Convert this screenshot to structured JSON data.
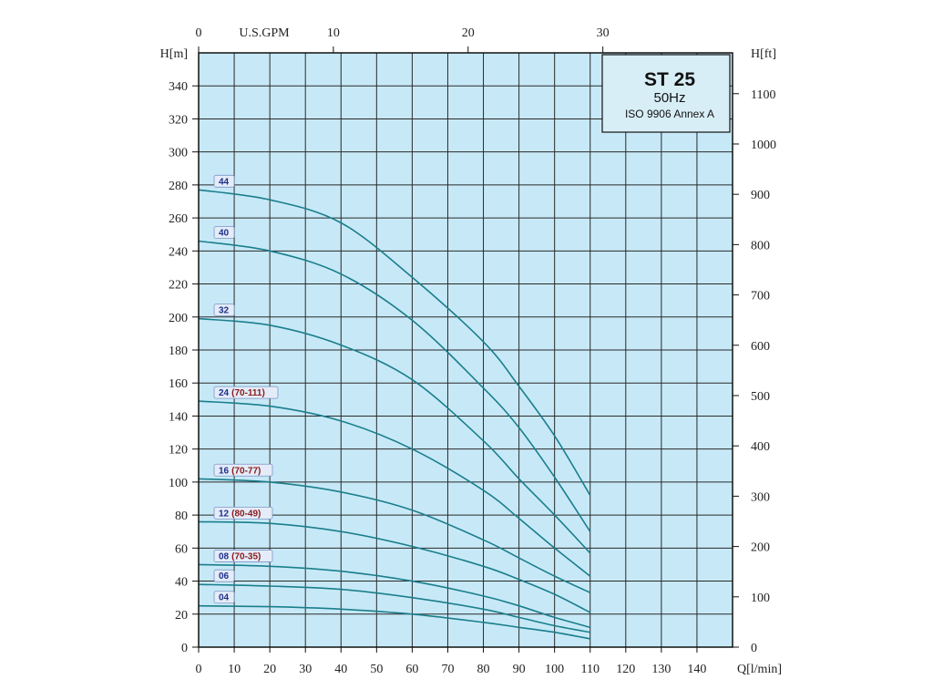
{
  "chart_data": {
    "type": "line",
    "title_box": {
      "model": "ST 25",
      "frequency": "50Hz",
      "standard": "ISO 9906 Annex A"
    },
    "x_axis": {
      "label": "Q[l/min]",
      "range": [
        0,
        150
      ],
      "ticks": [
        0,
        10,
        20,
        30,
        40,
        50,
        60,
        70,
        80,
        90,
        100,
        110,
        120,
        130,
        140
      ]
    },
    "x2_axis": {
      "label": "U.S.GPM",
      "ticks": [
        0,
        10,
        20,
        30
      ]
    },
    "y_axis": {
      "label": "H[m]",
      "range": [
        0,
        360
      ],
      "ticks": [
        0,
        20,
        40,
        60,
        80,
        100,
        120,
        140,
        160,
        180,
        200,
        220,
        240,
        260,
        280,
        300,
        320,
        340
      ]
    },
    "y2_axis": {
      "label": "H[ft]",
      "ticks": [
        0,
        100,
        200,
        300,
        400,
        500,
        600,
        700,
        800,
        900,
        1000,
        1100
      ]
    },
    "grid": true,
    "series": [
      {
        "name": "44",
        "extra": "",
        "x": [
          0,
          20,
          40,
          60,
          80,
          90,
          100,
          110
        ],
        "y": [
          277,
          271,
          257,
          224,
          185,
          158,
          128,
          92
        ]
      },
      {
        "name": "40",
        "extra": "",
        "x": [
          0,
          20,
          40,
          60,
          80,
          90,
          100,
          110
        ],
        "y": [
          246,
          240,
          226,
          198,
          157,
          133,
          103,
          70
        ]
      },
      {
        "name": "32",
        "extra": "",
        "x": [
          0,
          20,
          40,
          60,
          80,
          90,
          100,
          110
        ],
        "y": [
          199,
          195,
          183,
          162,
          125,
          102,
          80,
          57
        ]
      },
      {
        "name": "24",
        "extra": "(70-111)",
        "x": [
          0,
          20,
          40,
          60,
          80,
          90,
          100,
          110
        ],
        "y": [
          149,
          146,
          137,
          120,
          95,
          78,
          60,
          43
        ]
      },
      {
        "name": "16",
        "extra": "(70-77)",
        "x": [
          0,
          20,
          40,
          60,
          80,
          90,
          100,
          110
        ],
        "y": [
          102,
          100,
          94,
          83,
          65,
          54,
          43,
          33
        ]
      },
      {
        "name": "12",
        "extra": "(80-49)",
        "x": [
          0,
          20,
          40,
          60,
          80,
          90,
          100,
          110
        ],
        "y": [
          76,
          75,
          70,
          61,
          49,
          41,
          32,
          21
        ]
      },
      {
        "name": "08",
        "extra": "(70-35)",
        "x": [
          0,
          20,
          40,
          60,
          80,
          90,
          100,
          110
        ],
        "y": [
          50,
          49,
          46,
          40,
          31,
          25,
          18,
          12
        ]
      },
      {
        "name": "06",
        "extra": "",
        "x": [
          0,
          20,
          40,
          60,
          80,
          90,
          100,
          110
        ],
        "y": [
          38,
          37,
          35,
          30,
          23,
          18,
          13,
          9
        ]
      },
      {
        "name": "04",
        "extra": "",
        "x": [
          0,
          20,
          40,
          60,
          80,
          90,
          100,
          110
        ],
        "y": [
          25,
          24.5,
          23,
          20,
          15,
          12,
          9,
          5
        ]
      }
    ],
    "colors": {
      "plot_background": "#c7e9f7",
      "grid": "#2a2a2a",
      "curve": "#1b7e8c",
      "title_box_background": "#d8eef7",
      "tag_background": "#e3ecf8",
      "tag_border": "#7f94c6",
      "tag_text": "#1f2f8a",
      "tag_extra_text": "#8b1a1a"
    }
  }
}
